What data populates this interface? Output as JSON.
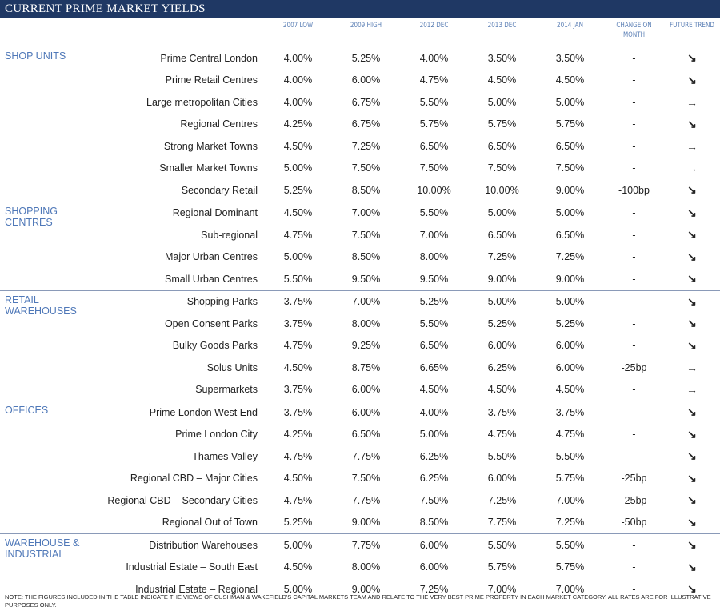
{
  "title": "CURRENT PRIME MARKET YIELDS",
  "columns": [
    "2007 LOW",
    "2009 HIGH",
    "2012 DEC",
    "2013 DEC",
    "2014 JAN",
    "CHANGE ON MONTH",
    "FUTURE TREND"
  ],
  "sections": [
    {
      "name": "SHOP UNITS",
      "rows": [
        [
          "Prime Central London",
          "4.00%",
          "5.25%",
          "4.00%",
          "3.50%",
          "3.50%",
          "-",
          "↘"
        ],
        [
          "Prime Retail Centres",
          "4.00%",
          "6.00%",
          "4.75%",
          "4.50%",
          "4.50%",
          "-",
          "↘"
        ],
        [
          "Large metropolitan Cities",
          "4.00%",
          "6.75%",
          "5.50%",
          "5.00%",
          "5.00%",
          "-",
          "→"
        ],
        [
          "Regional Centres",
          "4.25%",
          "6.75%",
          "5.75%",
          "5.75%",
          "5.75%",
          "-",
          "↘"
        ],
        [
          "Strong Market Towns",
          "4.50%",
          "7.25%",
          "6.50%",
          "6.50%",
          "6.50%",
          "-",
          "→"
        ],
        [
          "Smaller Market Towns",
          "5.00%",
          "7.50%",
          "7.50%",
          "7.50%",
          "7.50%",
          "-",
          "→"
        ],
        [
          "Secondary Retail",
          "5.25%",
          "8.50%",
          "10.00%",
          "10.00%",
          "9.00%",
          "-100bp",
          "↘"
        ]
      ]
    },
    {
      "name": "SHOPPING CENTRES",
      "rows": [
        [
          "Regional Dominant",
          "4.50%",
          "7.00%",
          "5.50%",
          "5.00%",
          "5.00%",
          "-",
          "↘"
        ],
        [
          "Sub-regional",
          "4.75%",
          "7.50%",
          "7.00%",
          "6.50%",
          "6.50%",
          "-",
          "↘"
        ],
        [
          "Major Urban Centres",
          "5.00%",
          "8.50%",
          "8.00%",
          "7.25%",
          "7.25%",
          "-",
          "↘"
        ],
        [
          "Small Urban Centres",
          "5.50%",
          "9.50%",
          "9.50%",
          "9.00%",
          "9.00%",
          "-",
          "↘"
        ]
      ]
    },
    {
      "name": "RETAIL WAREHOUSES",
      "rows": [
        [
          "Shopping Parks",
          "3.75%",
          "7.00%",
          "5.25%",
          "5.00%",
          "5.00%",
          "-",
          "↘"
        ],
        [
          "Open Consent Parks",
          "3.75%",
          "8.00%",
          "5.50%",
          "5.25%",
          "5.25%",
          "-",
          "↘"
        ],
        [
          "Bulky Goods Parks",
          "4.75%",
          "9.25%",
          "6.50%",
          "6.00%",
          "6.00%",
          "-",
          "↘"
        ],
        [
          "Solus Units",
          "4.50%",
          "8.75%",
          "6.65%",
          "6.25%",
          "6.00%",
          "-25bp",
          "→"
        ],
        [
          "Supermarkets",
          "3.75%",
          "6.00%",
          "4.50%",
          "4.50%",
          "4.50%",
          "-",
          "→"
        ]
      ]
    },
    {
      "name": "OFFICES",
      "rows": [
        [
          "Prime London West End",
          "3.75%",
          "6.00%",
          "4.00%",
          "3.75%",
          "3.75%",
          "-",
          "↘"
        ],
        [
          "Prime London City",
          "4.25%",
          "6.50%",
          "5.00%",
          "4.75%",
          "4.75%",
          "-",
          "↘"
        ],
        [
          "Thames Valley",
          "4.75%",
          "7.75%",
          "6.25%",
          "5.50%",
          "5.50%",
          "-",
          "↘"
        ],
        [
          "Regional CBD – Major Cities",
          "4.50%",
          "7.50%",
          "6.25%",
          "6.00%",
          "5.75%",
          "-25bp",
          "↘"
        ],
        [
          "Regional CBD – Secondary  Cities",
          "4.75%",
          "7.75%",
          "7.50%",
          "7.25%",
          "7.00%",
          "-25bp",
          "↘"
        ],
        [
          "Regional Out of Town",
          "5.25%",
          "9.00%",
          "8.50%",
          "7.75%",
          "7.25%",
          "-50bp",
          "↘"
        ]
      ]
    },
    {
      "name": "WAREHOUSE & INDUSTRIAL",
      "rows": [
        [
          "Distribution Warehouses",
          "5.00%",
          "7.75%",
          "6.00%",
          "5.50%",
          "5.50%",
          "-",
          "↘"
        ],
        [
          "Industrial Estate – South East",
          "4.50%",
          "8.00%",
          "6.00%",
          "5.75%",
          "5.75%",
          "-",
          "↘"
        ],
        [
          "Industrial Estate – Regional",
          "5.00%",
          "9.00%",
          "7.25%",
          "7.00%",
          "7.00%",
          "-",
          "↘"
        ]
      ]
    }
  ],
  "note": "NOTE: THE FIGURES INCLUDED IN THE TABLE INDICATE THE VIEWS OF CUSHMAN & WAKEFIELD'S CAPITAL MARKETS TEAM AND RELATE TO THE VERY BEST PRIME PROPERTY IN EACH MARKET CATEGORY.  ALL RATES ARE FOR ILLUSTRATIVE PURPOSES ONLY."
}
